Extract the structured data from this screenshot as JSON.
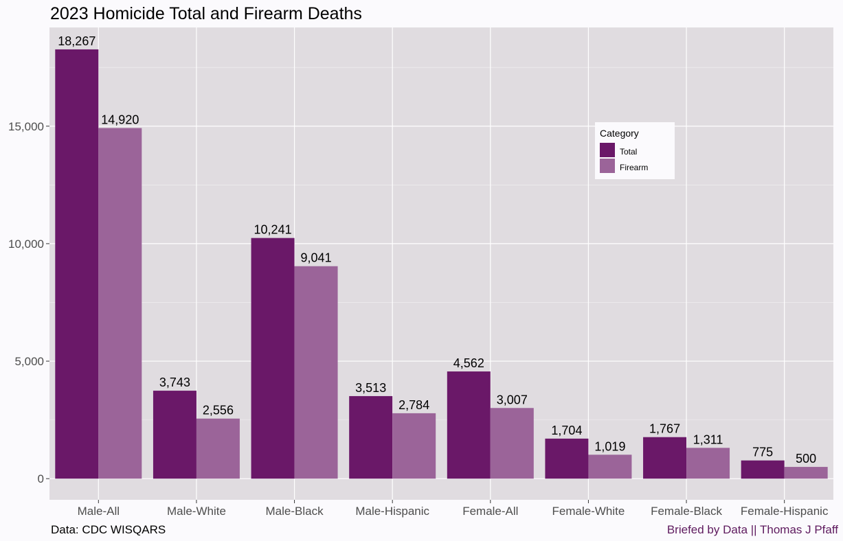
{
  "chart_data": {
    "type": "bar",
    "title": "2023 Homicide Total and Firearm Deaths",
    "xlabel": "",
    "ylabel": "",
    "categories": [
      "Male-All",
      "Male-White",
      "Male-Black",
      "Male-Hispanic",
      "Female-All",
      "Female-White",
      "Female-Black",
      "Female-Hispanic"
    ],
    "series": [
      {
        "name": "Total",
        "color": "#6a1868",
        "values": [
          18267,
          3743,
          10241,
          3513,
          4562,
          1704,
          1767,
          775
        ]
      },
      {
        "name": "Firearm",
        "color": "#9b6499",
        "values": [
          14920,
          2556,
          9041,
          2784,
          3007,
          1019,
          1311,
          500
        ]
      }
    ],
    "ylim": [
      -900,
      19200
    ],
    "yticks": [
      0,
      5000,
      10000,
      15000
    ],
    "ytick_labels": [
      "0",
      "5,000",
      "10,000",
      "15,000"
    ],
    "data_labels": [
      [
        "18,267",
        "3,743",
        "10,241",
        "3,513",
        "4,562",
        "1,704",
        "1,767",
        "775"
      ],
      [
        "14,920",
        "2,556",
        "9,041",
        "2,784",
        "3,007",
        "1,019",
        "1,311",
        "500"
      ]
    ],
    "legend": {
      "title": "Category",
      "position": "top-right"
    },
    "grid": true,
    "panel_color": "#e0dce0",
    "source_note": "Data: CDC WISQARS",
    "credit": "Briefed by Data || Thomas J Pfaff",
    "credit_color": "#5e1a5e"
  }
}
